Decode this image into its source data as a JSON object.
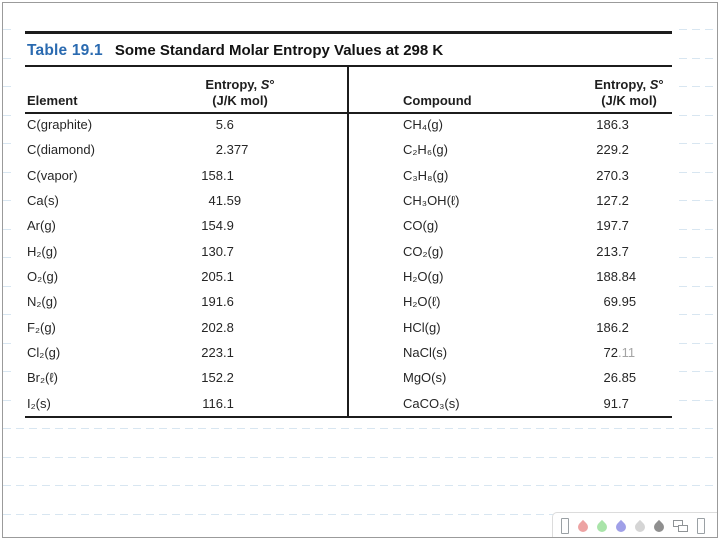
{
  "page": {
    "ruled_line_color": "#d8e6f1",
    "accent_color": "#2a6ab0"
  },
  "table": {
    "label": "Table 19.1",
    "title": "Some Standard Molar Entropy Values at 298 K",
    "headers": {
      "element": "Element",
      "compound": "Compound",
      "entropy_prefix": "Entropy, ",
      "entropy_symbol": "S",
      "entropy_degree": "°",
      "entropy_unit": "(J/K mol)"
    },
    "element_rows": [
      {
        "label": "C(graphite)",
        "int": "5",
        "frac": ".6"
      },
      {
        "label": "C(diamond)",
        "int": "2",
        "frac": ".377"
      },
      {
        "label": "C(vapor)",
        "int": "158",
        "frac": ".1"
      },
      {
        "label": "Ca(s)",
        "int": "41",
        "frac": ".59"
      },
      {
        "label": "Ar(g)",
        "int": "154",
        "frac": ".9"
      },
      {
        "label": "H₂(g)",
        "int": "130",
        "frac": ".7"
      },
      {
        "label": "O₂(g)",
        "int": "205",
        "frac": ".1"
      },
      {
        "label": "N₂(g)",
        "int": "191",
        "frac": ".6"
      },
      {
        "label": "F₂(g)",
        "int": "202",
        "frac": ".8"
      },
      {
        "label": "Cl₂(g)",
        "int": "223",
        "frac": ".1"
      },
      {
        "label": "Br₂(ℓ)",
        "int": "152",
        "frac": ".2"
      },
      {
        "label": "I₂(s)",
        "int": "116",
        "frac": ".1"
      }
    ],
    "compound_rows": [
      {
        "label": "CH₄(g)",
        "int": "186",
        "frac": ".3"
      },
      {
        "label": "C₂H₆(g)",
        "int": "229",
        "frac": ".2"
      },
      {
        "label": "C₃H₈(g)",
        "int": "270",
        "frac": ".3"
      },
      {
        "label": "CH₃OH(ℓ)",
        "int": "127",
        "frac": ".2"
      },
      {
        "label": "CO(g)",
        "int": "197",
        "frac": ".7"
      },
      {
        "label": "CO₂(g)",
        "int": "213",
        "frac": ".7"
      },
      {
        "label": "H₂O(g)",
        "int": "188",
        "frac": ".84"
      },
      {
        "label": "H₂O(ℓ)",
        "int": "69",
        "frac": ".95"
      },
      {
        "label": "HCl(g)",
        "int": "186",
        "frac": ".2"
      },
      {
        "label": "NaCl(s)",
        "int": "72",
        "frac": ".11",
        "muted_frac": true
      },
      {
        "label": "MgO(s)",
        "int": "26",
        "frac": ".85"
      },
      {
        "label": "CaCO₃(s)",
        "int": "91",
        "frac": ".7"
      }
    ]
  },
  "toolbar": {
    "icons": [
      {
        "name": "slide-page-icon",
        "type": "page"
      },
      {
        "name": "pen-color-red-icon",
        "type": "drop",
        "color": "#eda3a3"
      },
      {
        "name": "pen-color-green-icon",
        "type": "drop",
        "color": "#a9e4a9"
      },
      {
        "name": "pen-color-blue-icon",
        "type": "drop",
        "color": "#a0a0e8"
      },
      {
        "name": "pen-color-lightgray-icon",
        "type": "drop",
        "color": "#d5d5d5"
      },
      {
        "name": "pen-color-gray-icon",
        "type": "drop",
        "color": "#8f8f8f"
      },
      {
        "name": "cascade-windows-icon",
        "type": "windows"
      },
      {
        "name": "slide-thumbnail-icon",
        "type": "page"
      }
    ]
  }
}
